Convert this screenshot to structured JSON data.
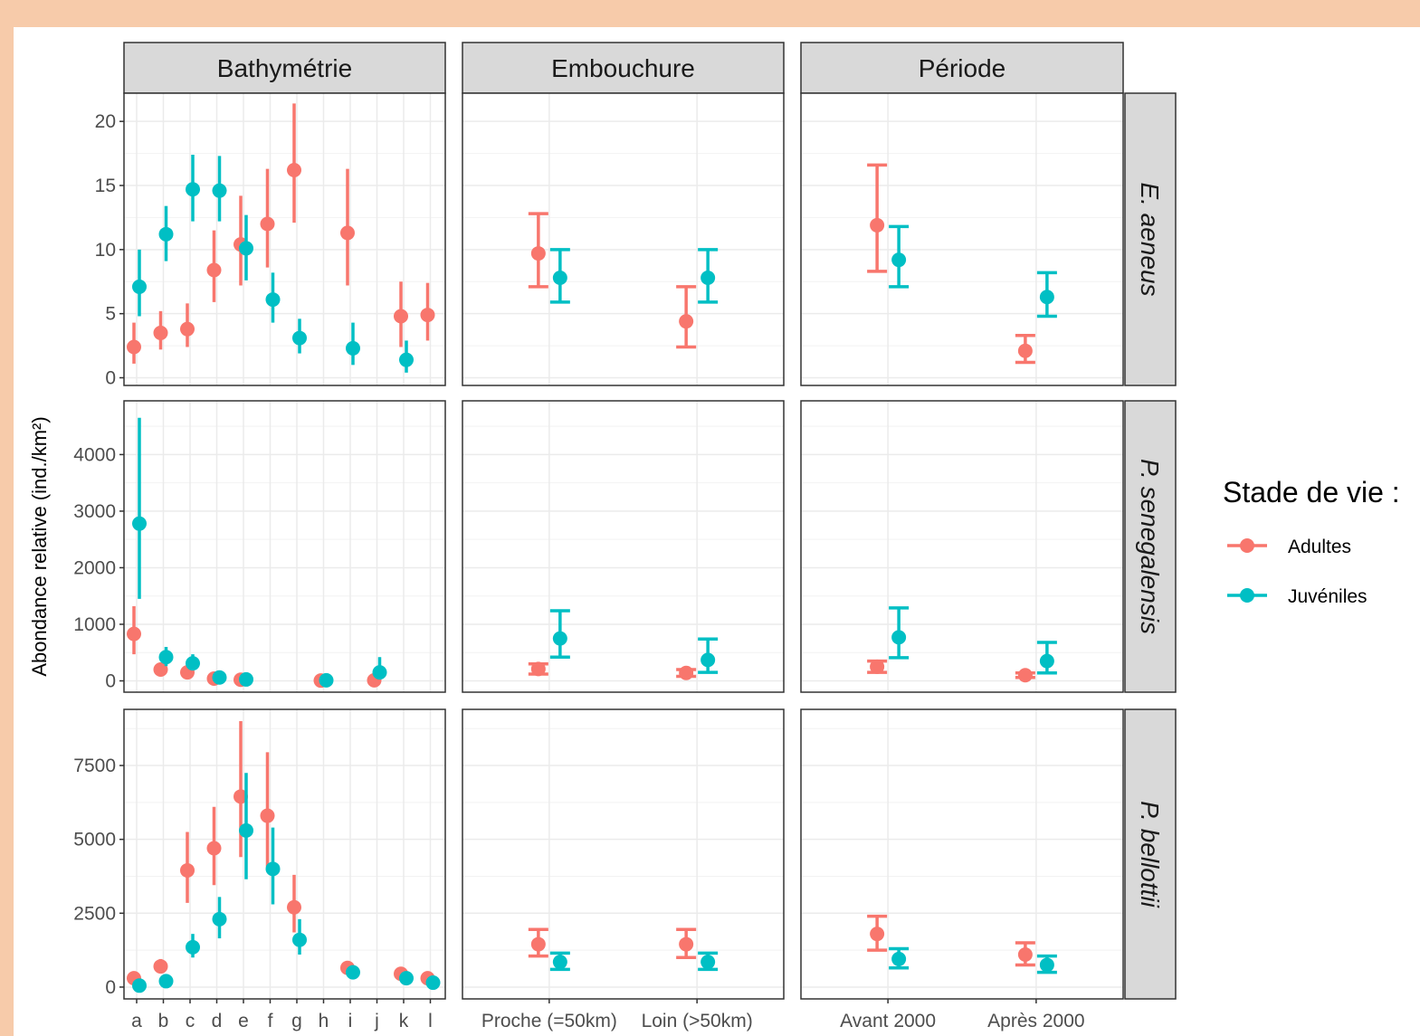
{
  "chart_data": {
    "type": "scatter",
    "subtype": "pointrange-facet-grid",
    "ylabel": "Abondance relative (ind./km²)",
    "legend": {
      "title": "Stade de vie :",
      "position": "right",
      "entries": [
        {
          "name": "Adultes",
          "color": "#F8766D"
        },
        {
          "name": "Juvéniles",
          "color": "#00BFC4"
        }
      ]
    },
    "columns": [
      {
        "key": "bathy",
        "label": "Bathymétrie",
        "categories": [
          "a",
          "b",
          "c",
          "d",
          "e",
          "f",
          "g",
          "h",
          "i",
          "j",
          "k",
          "l"
        ],
        "style": "bar"
      },
      {
        "key": "emb",
        "label": "Embouchure",
        "categories": [
          "Proche (=50km)",
          "Loin (>50km)"
        ],
        "style": "caps"
      },
      {
        "key": "per",
        "label": "Période",
        "categories": [
          "Avant 2000",
          "Après 2000"
        ],
        "style": "caps"
      }
    ],
    "rows": [
      {
        "label": "E. aeneus",
        "ylim": [
          -0.6,
          22.2
        ],
        "yticks": [
          0,
          5,
          10,
          15,
          20
        ],
        "ytick_labels": [
          "0",
          "5",
          "10",
          "15",
          "20"
        ],
        "data": {
          "bathy": {
            "Adultes": [
              [
                0,
                2.4,
                1.1,
                4.3
              ],
              [
                1,
                3.5,
                2.2,
                5.2
              ],
              [
                2,
                3.8,
                2.4,
                5.8
              ],
              [
                3,
                8.4,
                5.9,
                11.5
              ],
              [
                4,
                10.4,
                7.2,
                14.2
              ],
              [
                5,
                12.0,
                8.6,
                16.3
              ],
              [
                6,
                16.2,
                12.1,
                21.4
              ],
              [
                8,
                11.3,
                7.2,
                16.3
              ],
              [
                10,
                4.8,
                2.4,
                7.5
              ],
              [
                11,
                4.9,
                2.9,
                7.4
              ]
            ],
            "Juvéniles": [
              [
                0,
                7.1,
                4.8,
                10.0
              ],
              [
                1,
                11.2,
                9.1,
                13.4
              ],
              [
                2,
                14.7,
                12.2,
                17.4
              ],
              [
                3,
                14.6,
                12.2,
                17.3
              ],
              [
                4,
                10.1,
                7.6,
                12.7
              ],
              [
                5,
                6.1,
                4.3,
                8.2
              ],
              [
                6,
                3.1,
                1.9,
                4.6
              ],
              [
                8,
                2.3,
                1.0,
                4.3
              ],
              [
                10,
                1.4,
                0.4,
                2.9
              ]
            ]
          },
          "emb": {
            "Adultes": [
              [
                0,
                9.7,
                7.1,
                12.8
              ],
              [
                1,
                4.4,
                2.4,
                7.1
              ]
            ],
            "Juvéniles": [
              [
                0,
                7.8,
                5.9,
                10.0
              ],
              [
                1,
                7.8,
                5.9,
                10.0
              ]
            ]
          },
          "per": {
            "Adultes": [
              [
                0,
                11.9,
                8.3,
                16.6
              ],
              [
                1,
                2.1,
                1.2,
                3.3
              ]
            ],
            "Juvéniles": [
              [
                0,
                9.2,
                7.1,
                11.8
              ],
              [
                1,
                6.3,
                4.8,
                8.2
              ]
            ]
          }
        }
      },
      {
        "label": "P. senegalensis",
        "ylim": [
          -200,
          4950
        ],
        "yticks": [
          0,
          1000,
          2000,
          3000,
          4000
        ],
        "ytick_labels": [
          "0",
          "1000",
          "2000",
          "3000",
          "4000"
        ],
        "data": {
          "bathy": {
            "Adultes": [
              [
                0,
                830,
                470,
                1320
              ],
              [
                1,
                200,
                130,
                270
              ],
              [
                2,
                150,
                80,
                220
              ],
              [
                3,
                40,
                10,
                80
              ],
              [
                4,
                20,
                5,
                40
              ],
              [
                7,
                5,
                0,
                15
              ],
              [
                9,
                10,
                0,
                30
              ]
            ],
            "Juvéniles": [
              [
                0,
                2780,
                1450,
                4650
              ],
              [
                1,
                420,
                260,
                600
              ],
              [
                2,
                310,
                190,
                470
              ],
              [
                3,
                60,
                20,
                110
              ],
              [
                4,
                25,
                5,
                50
              ],
              [
                7,
                10,
                0,
                25
              ],
              [
                9,
                150,
                40,
                420
              ]
            ]
          },
          "emb": {
            "Adultes": [
              [
                0,
                210,
                120,
                300
              ],
              [
                1,
                140,
                80,
                200
              ]
            ],
            "Juvéniles": [
              [
                0,
                750,
                420,
                1240
              ],
              [
                1,
                370,
                150,
                740
              ]
            ]
          },
          "per": {
            "Adultes": [
              [
                0,
                250,
                150,
                350
              ],
              [
                1,
                100,
                60,
                140
              ]
            ],
            "Juvéniles": [
              [
                0,
                770,
                410,
                1290
              ],
              [
                1,
                350,
                140,
                680
              ]
            ]
          }
        }
      },
      {
        "label": "P. bellottii",
        "ylim": [
          -400,
          9400
        ],
        "yticks": [
          0,
          2500,
          5000,
          7500
        ],
        "ytick_labels": [
          "0",
          "2500",
          "5000",
          "7500"
        ],
        "data": {
          "bathy": {
            "Adultes": [
              [
                0,
                300,
                180,
                450
              ],
              [
                1,
                700,
                470,
                950
              ],
              [
                2,
                3950,
                2850,
                5250
              ],
              [
                3,
                4700,
                3450,
                6100
              ],
              [
                4,
                6450,
                4400,
                9000
              ],
              [
                5,
                5800,
                4050,
                7950
              ],
              [
                6,
                2700,
                1850,
                3800
              ],
              [
                8,
                650,
                450,
                850
              ],
              [
                10,
                450,
                300,
                650
              ],
              [
                11,
                300,
                150,
                450
              ]
            ],
            "Juvéniles": [
              [
                0,
                50,
                10,
                120
              ],
              [
                1,
                200,
                110,
                320
              ],
              [
                2,
                1350,
                1000,
                1800
              ],
              [
                3,
                2300,
                1650,
                3050
              ],
              [
                4,
                5300,
                3650,
                7250
              ],
              [
                5,
                4000,
                2800,
                5400
              ],
              [
                6,
                1600,
                1100,
                2300
              ],
              [
                8,
                500,
                350,
                700
              ],
              [
                10,
                300,
                180,
                450
              ],
              [
                11,
                150,
                60,
                270
              ]
            ]
          },
          "emb": {
            "Adultes": [
              [
                0,
                1450,
                1050,
                1950
              ],
              [
                1,
                1450,
                1000,
                1950
              ]
            ],
            "Juvéniles": [
              [
                0,
                850,
                600,
                1150
              ],
              [
                1,
                850,
                600,
                1150
              ]
            ]
          },
          "per": {
            "Adultes": [
              [
                0,
                1800,
                1250,
                2400
              ],
              [
                1,
                1100,
                750,
                1500
              ]
            ],
            "Juvéniles": [
              [
                0,
                950,
                650,
                1300
              ],
              [
                1,
                750,
                500,
                1050
              ]
            ]
          }
        }
      }
    ]
  }
}
